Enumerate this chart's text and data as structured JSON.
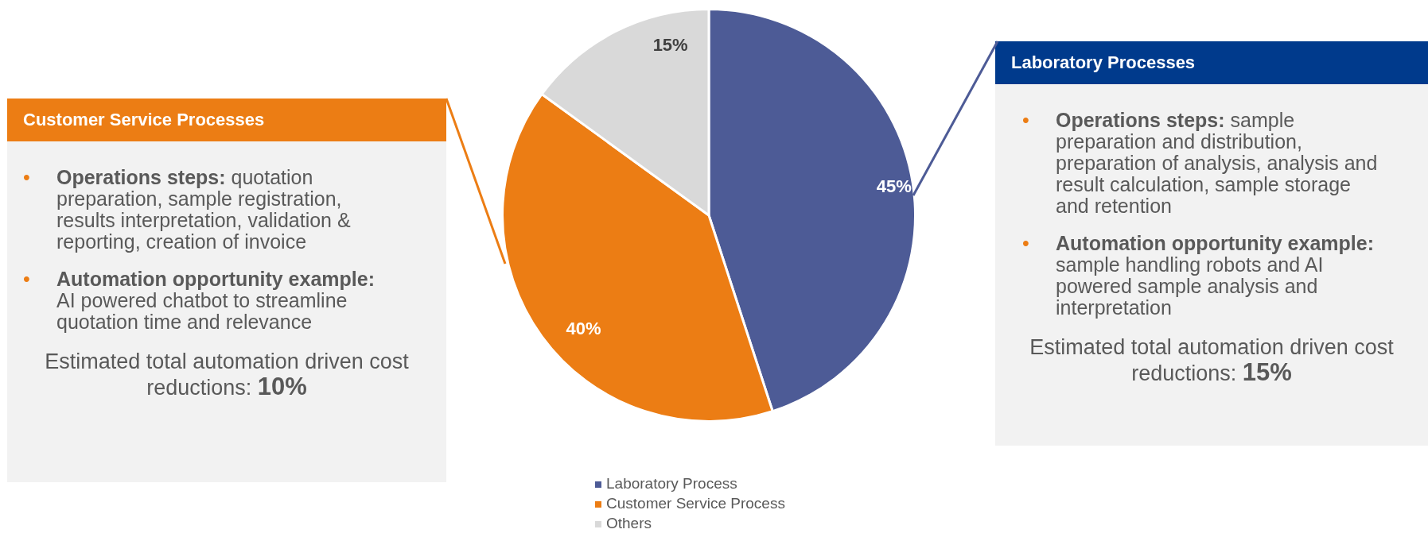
{
  "chart_data": [
    {
      "type": "other",
      "title": "Customer Service Processes",
      "annotations": [
        "•",
        "Operations steps:",
        "quotation preparation, sample registration, results interpretation, validation & reporting, creation of invoice",
        "•",
        "Automation opportunity example:",
        "AI powered chatbot to streamline quotation time and relevance",
        "Estimated total automation driven cost reductions:",
        "10%"
      ]
    },
    {
      "type": "pie",
      "categories": [
        "Laboratory Process",
        "Customer Service Process",
        "Others"
      ],
      "values": [
        45,
        40,
        15
      ],
      "value_labels": [
        "45%",
        "40%",
        "15%"
      ],
      "colors": [
        "#4d5b96",
        "#ec7d14",
        "#d9d9d9"
      ],
      "legend": "bottom"
    },
    {
      "type": "other",
      "title": "Laboratory Processes",
      "annotations": [
        "•",
        "Operations steps:",
        "sample preparation and distribution, preparation of analysis, analysis and result calculation, sample storage and retention",
        "•",
        "Automation opportunity example:",
        "sample handling robots and AI powered sample analysis and interpretation",
        "Estimated total automation driven cost reductions:",
        "15%"
      ]
    }
  ]
}
